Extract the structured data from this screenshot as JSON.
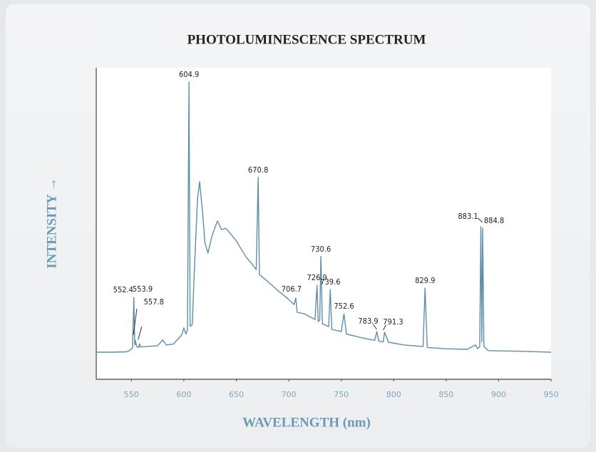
{
  "chart_data": {
    "type": "line",
    "title": "PHOTOLUMINESCENCE SPECTRUM",
    "x_label": "WAVELENGTH (nm)",
    "y_label": "INTENSITY →",
    "xlim": [
      516.5,
      950
    ],
    "xticks": [
      550,
      600,
      650,
      700,
      750,
      800,
      850,
      900,
      950
    ],
    "ylim": [
      0,
      100
    ],
    "series": [
      {
        "color": "#5f8fa8",
        "x": [
          516.5,
          530,
          545,
          548,
          551,
          552.4,
          553.2,
          553.9,
          555,
          557,
          557.8,
          558.6,
          565,
          575,
          577,
          580,
          583,
          590,
          598,
          600,
          602,
          603.5,
          604.9,
          606,
          608,
          610,
          613,
          615,
          618,
          620,
          623,
          627,
          632,
          636,
          640,
          645,
          650,
          655,
          660,
          665,
          669,
          670.8,
          672,
          680,
          690,
          700,
          705,
          706.7,
          708,
          715,
          725,
          726.9,
          728,
          729.5,
          730.6,
          732,
          738,
          739.6,
          741,
          750,
          752.6,
          755,
          770,
          782,
          783.9,
          786,
          790,
          791.3,
          795,
          810,
          828,
          829.9,
          832,
          850,
          870,
          878,
          880,
          882,
          883.1,
          884,
          884.8,
          886,
          890,
          920,
          950
        ],
        "values": [
          8.7,
          8.7,
          8.8,
          9.2,
          10,
          26.3,
          11,
          12.4,
          10.5,
          10.2,
          11.4,
          10.4,
          10.5,
          10.8,
          11.5,
          12.6,
          11,
          11.3,
          14.2,
          16.5,
          14.5,
          16,
          95.4,
          17,
          17.6,
          34.8,
          57.7,
          63.4,
          53,
          44,
          40.5,
          46.2,
          50.8,
          48,
          48.5,
          46.5,
          44.4,
          41.6,
          38.9,
          37,
          35.2,
          64.8,
          33.6,
          31.4,
          28.4,
          25.6,
          24,
          26.1,
          21.5,
          21,
          19.2,
          30.2,
          18.5,
          19,
          39.4,
          17.8,
          16.9,
          28.8,
          16,
          15.3,
          21,
          14.5,
          13.3,
          12.5,
          15.3,
          12.2,
          12,
          15.1,
          11.9,
          11,
          10.5,
          29.3,
          10.2,
          9.8,
          9.6,
          11,
          9.8,
          10.5,
          49,
          12,
          48.5,
          10.5,
          9.2,
          9,
          8.7
        ]
      }
    ],
    "annotations": [
      552.4,
      553.9,
      557.8,
      604.9,
      670.8,
      706.7,
      726.9,
      730.6,
      739.6,
      752.6,
      783.9,
      791.3,
      829.9,
      883.1,
      884.8
    ]
  }
}
